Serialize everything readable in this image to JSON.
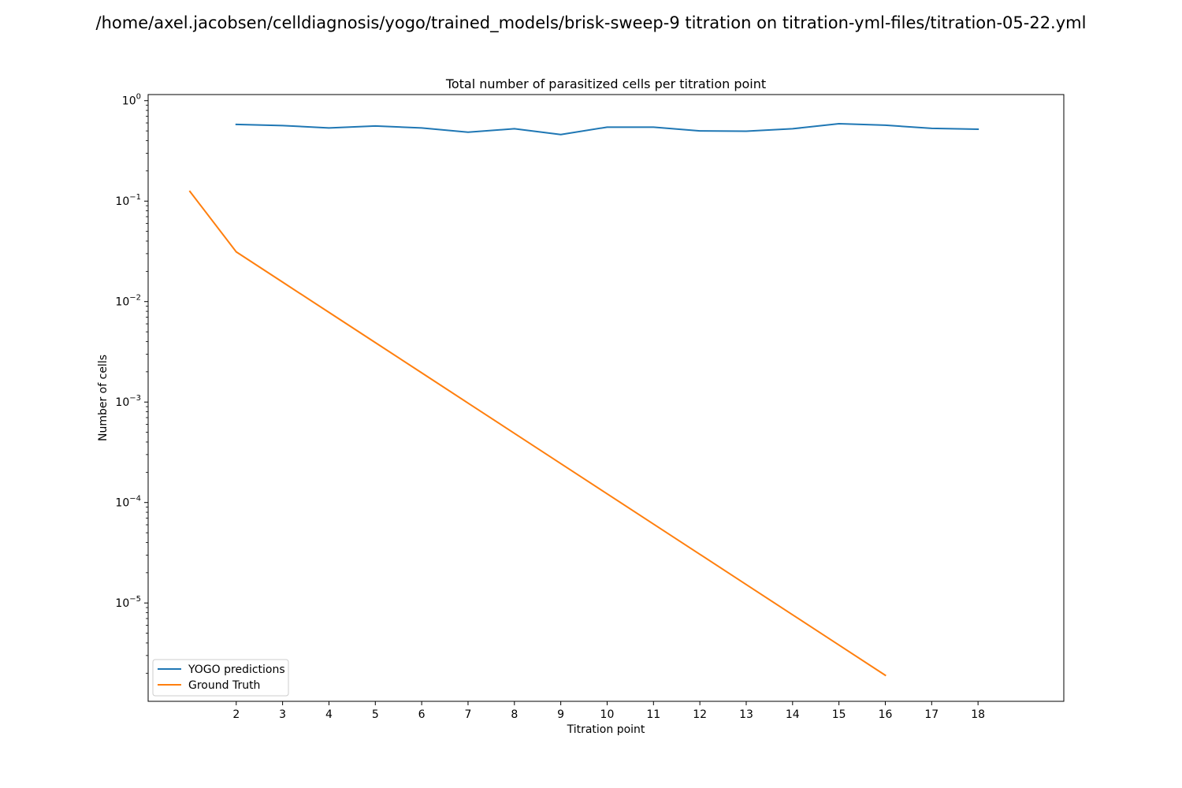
{
  "figure": {
    "suptitle": "/home/axel.jacobsen/celldiagnosis/yogo/trained_models/brisk-sweep-9 titration on titration-yml-files/titration-05-22.yml"
  },
  "chart_data": {
    "type": "line",
    "title": "Total number of parasitized cells per titration point",
    "xlabel": "Titration point",
    "ylabel": "Number of cells",
    "yscale": "log",
    "xlim": [
      0.1,
      19.85
    ],
    "ylim": [
      1.05e-06,
      1.15
    ],
    "grid": false,
    "legend_position": "lower-left",
    "xticks": [
      2,
      3,
      4,
      5,
      6,
      7,
      8,
      9,
      10,
      11,
      12,
      13,
      14,
      15,
      16,
      17,
      18
    ],
    "yticks": [
      {
        "value": 1,
        "base": "10",
        "exp": "0"
      },
      {
        "value": 0.1,
        "base": "10",
        "exp": "−1"
      },
      {
        "value": 0.01,
        "base": "10",
        "exp": "−2"
      },
      {
        "value": 0.001,
        "base": "10",
        "exp": "−3"
      },
      {
        "value": 0.0001,
        "base": "10",
        "exp": "−4"
      },
      {
        "value": 1e-05,
        "base": "10",
        "exp": "−5"
      }
    ],
    "series": [
      {
        "name": "YOGO predictions",
        "color": "#1f77b4",
        "x": [
          2,
          3,
          4,
          5,
          6,
          7,
          8,
          9,
          10,
          11,
          12,
          13,
          14,
          15,
          16,
          17,
          18
        ],
        "y": [
          0.58,
          0.565,
          0.535,
          0.56,
          0.535,
          0.485,
          0.525,
          0.46,
          0.545,
          0.545,
          0.5,
          0.497,
          0.525,
          0.59,
          0.57,
          0.53,
          0.52
        ]
      },
      {
        "name": "Ground Truth",
        "color": "#ff7f0e",
        "x": [
          1,
          2,
          3,
          4,
          5,
          6,
          7,
          8,
          9,
          10,
          11,
          12,
          13,
          14,
          15,
          16
        ],
        "y": [
          0.125,
          0.03125,
          0.015625,
          0.0078125,
          0.00390625,
          0.001953125,
          0.0009765625,
          0.00048828125,
          0.000244140625,
          0.0001220703125,
          6.103515625e-05,
          3.0517578125e-05,
          1.52587890625e-05,
          7.62939453125e-06,
          3.814697265625e-06,
          1.9073486328125e-06
        ]
      }
    ]
  }
}
